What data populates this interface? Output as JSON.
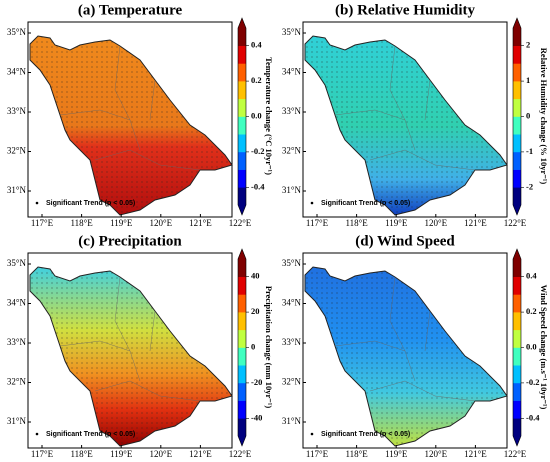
{
  "lat_labels": [
    "35°N",
    "34°N",
    "33°N",
    "32°N",
    "31°N"
  ],
  "lon_labels": [
    "117°E",
    "118°E",
    "119°E",
    "120°E",
    "121°E",
    "122°E"
  ],
  "panels": [
    {
      "title": "(a) Temperature",
      "colorbar_label": "Temperature change (°C 10yr⁻¹)",
      "clim": [
        -0.5,
        0.5
      ],
      "ticks": [
        -0.4,
        -0.2,
        {
          "value": 0,
          "label": "0.0"
        },
        0.2,
        0.4
      ],
      "legend": "Significant Trend (p < 0.05)"
    },
    {
      "title": "(b) Relative Humidity",
      "colorbar_label": "Relative Humidity change (% 10yr⁻¹)",
      "clim": [
        -2.5,
        2.5
      ],
      "ticks": [
        -2,
        -1,
        0,
        1,
        2
      ],
      "legend": "Significant Trend (p < 0.05)"
    },
    {
      "title": "(c) Precipitation",
      "colorbar_label": "Precipitation change (mm 10yr⁻¹)",
      "clim": [
        -50,
        50
      ],
      "ticks": [
        -40,
        -20,
        0,
        20,
        40
      ],
      "legend": "Significant Trend (p < 0.05)"
    },
    {
      "title": "(d) Wind Speed",
      "colorbar_label": "Wind Speed change (m.s⁻¹ 10yr⁻¹)",
      "clim": [
        -0.5,
        0.5
      ],
      "ticks": [
        {
          "value": -0.4,
          "label": "-0.4"
        },
        -0.2,
        {
          "value": 0,
          "label": "0.0"
        },
        0.2,
        0.4
      ],
      "legend": "Significant Trend (p < 0.05)"
    }
  ]
}
